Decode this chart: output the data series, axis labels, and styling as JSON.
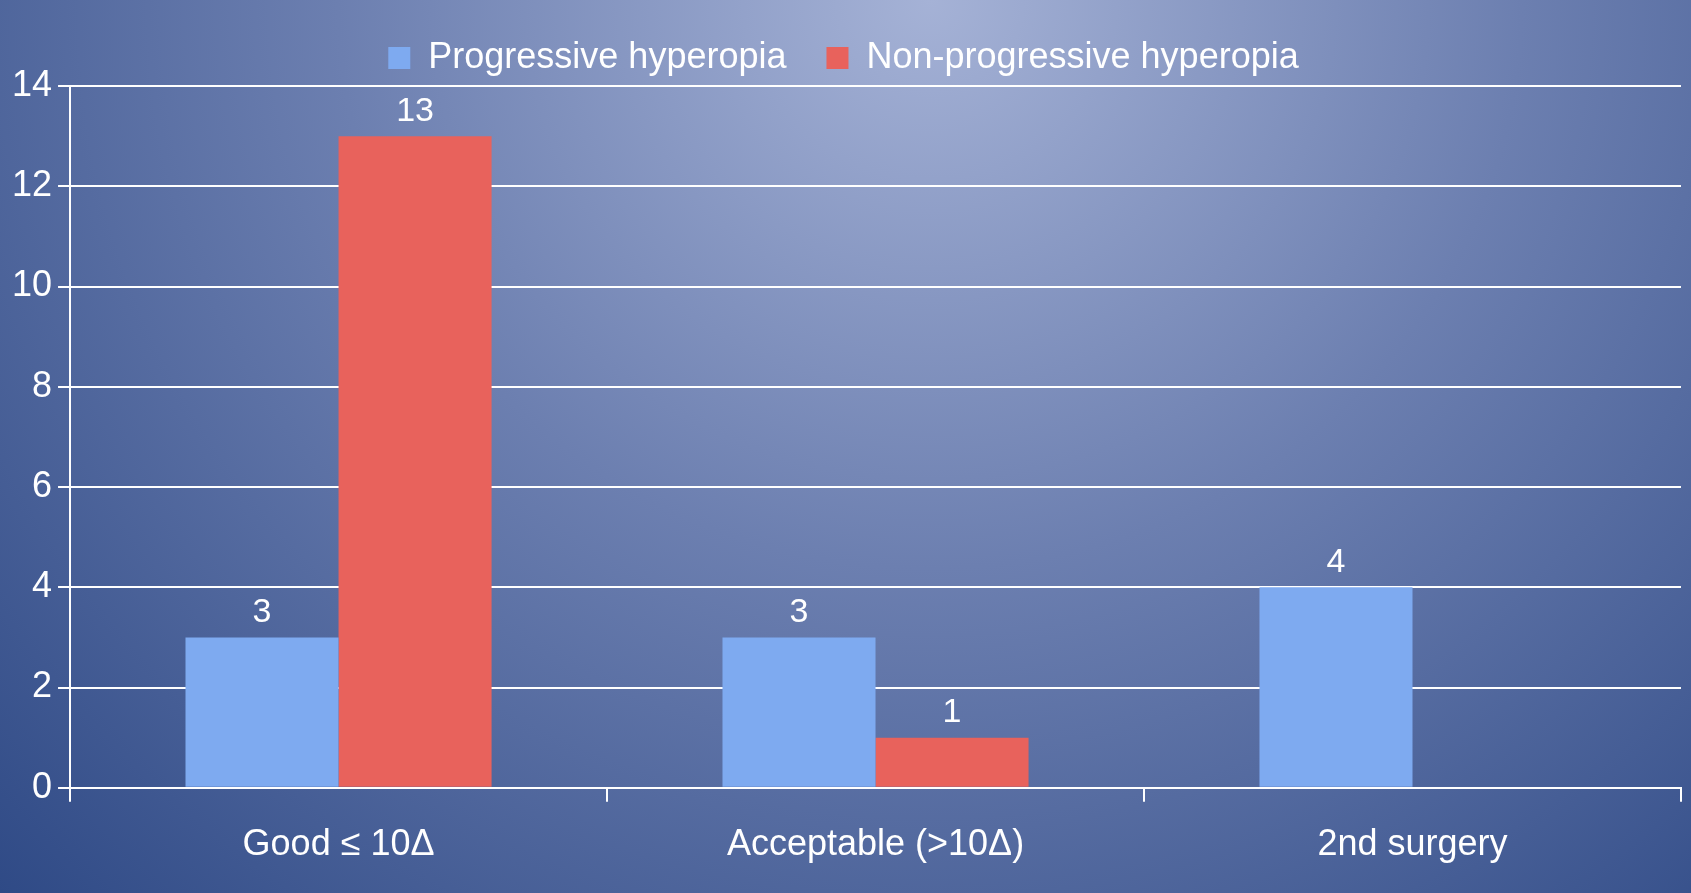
{
  "chart_data": {
    "type": "bar",
    "categories": [
      "Good ≤ 10Δ",
      "Acceptable (>10Δ)",
      "2nd surgery"
    ],
    "series": [
      {
        "name": "Progressive hyperopia",
        "color": "#7eaaf0",
        "values": [
          3,
          3,
          4
        ]
      },
      {
        "name": "Non-progressive hyperopia",
        "color": "#e8625c",
        "values": [
          13,
          1,
          null
        ]
      }
    ],
    "ylim": [
      0,
      14
    ],
    "yticks": [
      0,
      2,
      4,
      6,
      8,
      10,
      12,
      14
    ],
    "grid": "y",
    "legend": "top",
    "data_labels": true
  }
}
